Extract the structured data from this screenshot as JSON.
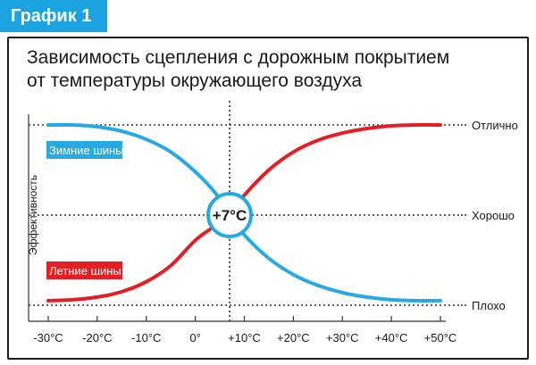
{
  "badge": "График 1",
  "title_line1": "Зависимость сцепления с дорожным покрытием",
  "title_line2": "от температуры окружающего воздуха",
  "colors": {
    "accent": "#1aa3df",
    "winter": "#27a9e1",
    "summer": "#e31e24"
  },
  "chart_data": {
    "type": "line",
    "title": "Зависимость сцепления с дорожным покрытием от температуры окружающего воздуха",
    "xlabel": "",
    "ylabel": "Эффективность",
    "x_ticks": [
      "-30°C",
      "-20°C",
      "-10°C",
      "0°",
      "+10°C",
      "+20°C",
      "+30°C",
      "+40°C",
      "+50°C"
    ],
    "x_values": [
      -30,
      -20,
      -10,
      0,
      10,
      20,
      30,
      40,
      50
    ],
    "xlim": [
      -30,
      50
    ],
    "y_levels": [
      "Плохо",
      "Хорошо",
      "Отлично"
    ],
    "ylim": [
      0,
      2
    ],
    "crossover_label": "+7°C",
    "crossover_x": 7,
    "grid": false,
    "series": [
      {
        "name": "Зимние шины",
        "color": "#27a9e1",
        "x": [
          -30,
          -25,
          -20,
          -15,
          -10,
          -5,
          0,
          4,
          7,
          10,
          15,
          20,
          25,
          30,
          35,
          40,
          45,
          50
        ],
        "y": [
          2.0,
          2.0,
          1.98,
          1.93,
          1.84,
          1.7,
          1.48,
          1.25,
          1.0,
          0.78,
          0.52,
          0.34,
          0.22,
          0.14,
          0.09,
          0.06,
          0.05,
          0.05
        ]
      },
      {
        "name": "Летние шины",
        "color": "#e31e24",
        "x": [
          -30,
          -25,
          -20,
          -15,
          -10,
          -5,
          0,
          4,
          7,
          10,
          15,
          20,
          25,
          30,
          35,
          40,
          45,
          50
        ],
        "y": [
          0.05,
          0.06,
          0.09,
          0.15,
          0.26,
          0.44,
          0.72,
          0.88,
          1.0,
          1.22,
          1.5,
          1.7,
          1.83,
          1.91,
          1.96,
          1.99,
          2.0,
          2.0
        ]
      }
    ]
  }
}
